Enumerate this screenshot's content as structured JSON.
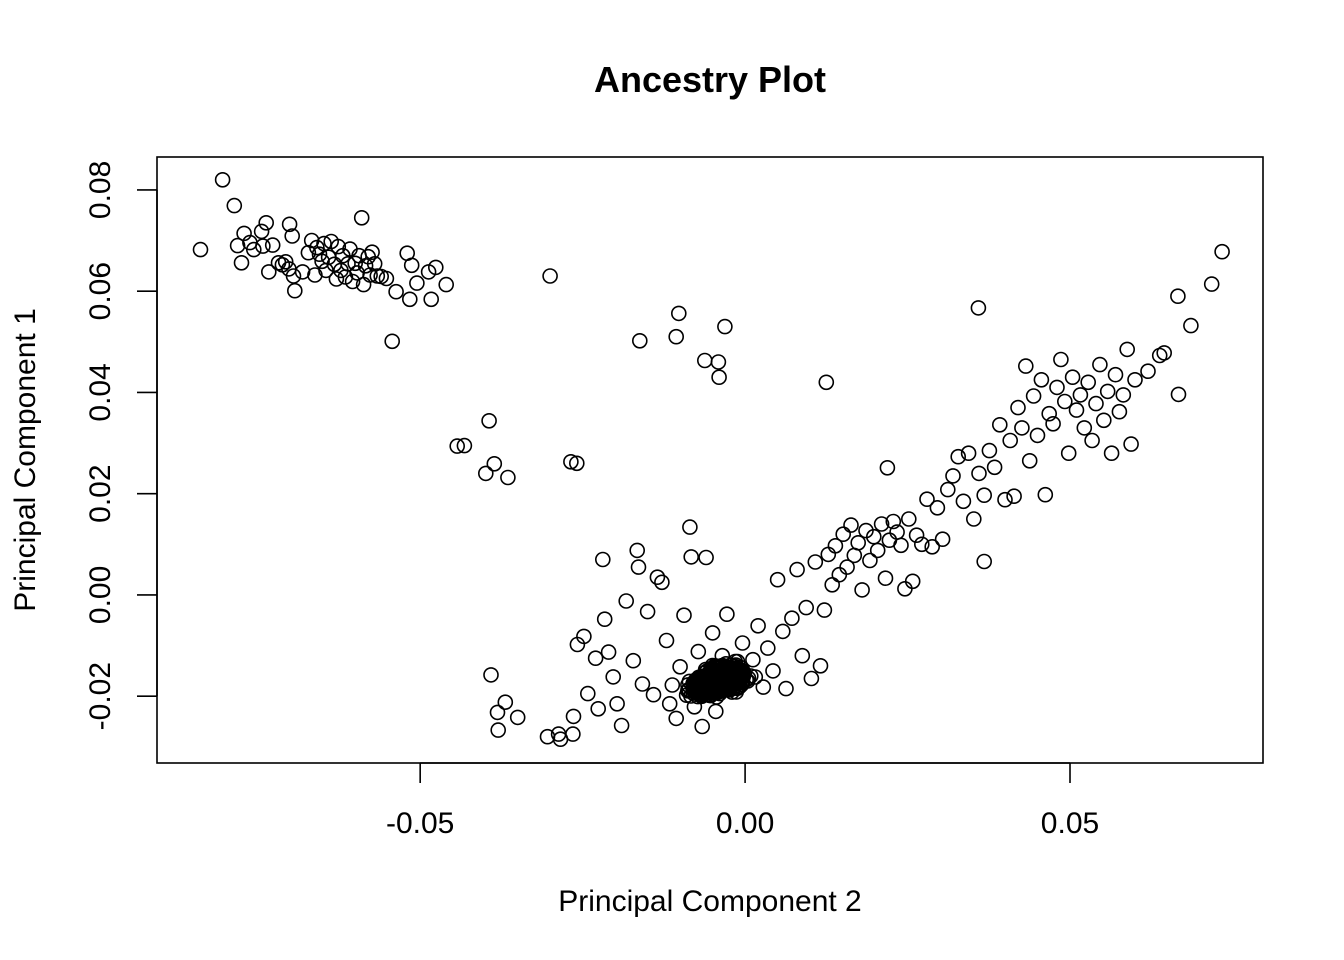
{
  "chart_data": {
    "type": "scatter",
    "title": "Ancestry Plot",
    "xlabel": "Principal Component 2",
    "ylabel": "Principal Component 1",
    "xlim": [
      -0.0905,
      0.0797
    ],
    "ylim": [
      -0.0332,
      0.0865
    ],
    "xticks": [
      -0.05,
      0.0,
      0.05
    ],
    "xtick_labels": [
      "-0.05",
      "0.00",
      "0.05"
    ],
    "yticks": [
      -0.02,
      0.0,
      0.02,
      0.04,
      0.06,
      0.08
    ],
    "ytick_labels": [
      "-0.02",
      "0.00",
      "0.02",
      "0.04",
      "0.06",
      "0.08"
    ],
    "box": true,
    "grid": false,
    "legend": "none",
    "point_style": "open-circle",
    "color": "#000000",
    "series": [
      {
        "points": [
          [
            -0.0838,
            0.0682
          ],
          [
            -0.0804,
            0.082
          ],
          [
            -0.0786,
            0.0769
          ],
          [
            -0.0781,
            0.069
          ],
          [
            -0.0775,
            0.0656
          ],
          [
            -0.0771,
            0.0714
          ],
          [
            -0.0762,
            0.0696
          ],
          [
            -0.0756,
            0.0682
          ],
          [
            -0.0744,
            0.0718
          ],
          [
            -0.0742,
            0.0689
          ],
          [
            -0.0737,
            0.0735
          ],
          [
            -0.0733,
            0.0638
          ],
          [
            -0.0727,
            0.0691
          ],
          [
            -0.0718,
            0.0656
          ],
          [
            -0.0712,
            0.0652
          ],
          [
            -0.0707,
            0.0658
          ],
          [
            -0.0702,
            0.0644
          ],
          [
            -0.0701,
            0.0732
          ],
          [
            -0.0697,
            0.0709
          ],
          [
            -0.0695,
            0.063
          ],
          [
            -0.0693,
            0.0601
          ],
          [
            -0.0681,
            0.0638
          ],
          [
            -0.0672,
            0.0676
          ],
          [
            -0.0667,
            0.07
          ],
          [
            -0.0662,
            0.0632
          ],
          [
            -0.0659,
            0.0686
          ],
          [
            -0.0655,
            0.0673
          ],
          [
            -0.0651,
            0.0659
          ],
          [
            -0.0648,
            0.0694
          ],
          [
            -0.0645,
            0.0641
          ],
          [
            -0.0641,
            0.0667
          ],
          [
            -0.0637,
            0.0698
          ],
          [
            -0.0632,
            0.0653
          ],
          [
            -0.0629,
            0.0624
          ],
          [
            -0.0626,
            0.0688
          ],
          [
            -0.0622,
            0.0641
          ],
          [
            -0.0619,
            0.067
          ],
          [
            -0.0615,
            0.0628
          ],
          [
            -0.0611,
            0.0654
          ],
          [
            -0.0608,
            0.0683
          ],
          [
            -0.0604,
            0.0619
          ],
          [
            -0.06,
            0.0655
          ],
          [
            -0.0597,
            0.0636
          ],
          [
            -0.0594,
            0.067
          ],
          [
            -0.059,
            0.0745
          ],
          [
            -0.0587,
            0.0613
          ],
          [
            -0.0584,
            0.065
          ],
          [
            -0.058,
            0.0668
          ],
          [
            -0.0577,
            0.0632
          ],
          [
            -0.0574,
            0.0677
          ],
          [
            -0.057,
            0.0654
          ],
          [
            -0.0566,
            0.063
          ],
          [
            -0.056,
            0.0629
          ],
          [
            -0.0552,
            0.0625
          ],
          [
            -0.0543,
            0.0501
          ],
          [
            -0.0537,
            0.0599
          ],
          [
            -0.052,
            0.0675
          ],
          [
            -0.0516,
            0.0584
          ],
          [
            -0.0513,
            0.0651
          ],
          [
            -0.0505,
            0.0616
          ],
          [
            -0.0487,
            0.0638
          ],
          [
            -0.0483,
            0.0584
          ],
          [
            -0.0476,
            0.0647
          ],
          [
            -0.046,
            0.0613
          ],
          [
            -0.0443,
            0.0294
          ],
          [
            -0.0432,
            0.0295
          ],
          [
            -0.0399,
            0.024
          ],
          [
            -0.0394,
            0.0344
          ],
          [
            -0.0386,
            0.0259
          ],
          [
            -0.0365,
            0.0232
          ],
          [
            -0.03,
            0.063
          ],
          [
            -0.0268,
            0.0263
          ],
          [
            -0.0259,
            0.026
          ],
          [
            -0.0162,
            0.0502
          ],
          [
            -0.0106,
            0.051
          ],
          [
            -0.0102,
            0.0556
          ],
          [
            -0.0062,
            0.0463
          ],
          [
            -0.0041,
            0.046
          ],
          [
            -0.004,
            0.043
          ],
          [
            -0.0031,
            0.053
          ],
          [
            0.0125,
            0.042
          ],
          [
            0.0359,
            0.0567
          ],
          [
            0.0219,
            0.0251
          ],
          [
            0.0368,
            0.0066
          ],
          [
            -0.0391,
            -0.0158
          ],
          [
            -0.0381,
            -0.0232
          ],
          [
            -0.038,
            -0.0267
          ],
          [
            -0.0369,
            -0.0212
          ],
          [
            -0.035,
            -0.0242
          ],
          [
            -0.0304,
            -0.028
          ],
          [
            -0.0287,
            -0.0275
          ],
          [
            -0.0284,
            -0.0285
          ],
          [
            -0.0265,
            -0.0275
          ],
          [
            -0.0264,
            -0.024
          ],
          [
            -0.0258,
            -0.0098
          ],
          [
            -0.0248,
            -0.0082
          ],
          [
            -0.0242,
            -0.0195
          ],
          [
            -0.023,
            -0.0125
          ],
          [
            -0.0226,
            -0.0225
          ],
          [
            -0.0219,
            0.007
          ],
          [
            -0.0216,
            -0.0048
          ],
          [
            -0.021,
            -0.0113
          ],
          [
            -0.0203,
            -0.0162
          ],
          [
            -0.0197,
            -0.0215
          ],
          [
            -0.019,
            -0.0258
          ],
          [
            -0.0183,
            -0.0012
          ],
          [
            -0.0172,
            -0.013
          ],
          [
            -0.0166,
            0.0088
          ],
          [
            -0.0164,
            0.0055
          ],
          [
            -0.0158,
            -0.0176
          ],
          [
            -0.015,
            -0.0033
          ],
          [
            -0.0141,
            -0.0197
          ],
          [
            -0.0135,
            0.0035
          ],
          [
            -0.0128,
            0.0025
          ],
          [
            -0.0121,
            -0.009
          ],
          [
            -0.0116,
            -0.0215
          ],
          [
            -0.0112,
            -0.0178
          ],
          [
            -0.0106,
            -0.0244
          ],
          [
            -0.01,
            -0.0142
          ],
          [
            -0.0094,
            -0.004
          ],
          [
            -0.009,
            -0.0198
          ],
          [
            -0.0085,
            0.0134
          ],
          [
            -0.0083,
            0.0075
          ],
          [
            -0.0078,
            -0.0221
          ],
          [
            -0.0072,
            -0.0112
          ],
          [
            -0.0066,
            -0.026
          ],
          [
            -0.006,
            0.0074
          ],
          [
            -0.0056,
            -0.018
          ],
          [
            -0.005,
            -0.0075
          ],
          [
            -0.0045,
            -0.023
          ],
          [
            -0.004,
            -0.0152
          ],
          [
            -0.0035,
            -0.012
          ],
          [
            -0.0028,
            -0.0038
          ],
          [
            -0.002,
            -0.0192
          ],
          [
            -0.0012,
            -0.0158
          ],
          [
            -0.0004,
            -0.0095
          ],
          [
            0.0004,
            -0.017
          ],
          [
            0.0012,
            -0.0128
          ],
          [
            0.002,
            -0.0061
          ],
          [
            0.0028,
            -0.0182
          ],
          [
            0.0035,
            -0.0105
          ],
          [
            0.0043,
            -0.015
          ],
          [
            0.005,
            0.003
          ],
          [
            0.0058,
            -0.0072
          ],
          [
            0.0063,
            -0.0185
          ],
          [
            0.0072,
            -0.0046
          ],
          [
            0.008,
            0.005
          ],
          [
            0.0088,
            -0.012
          ],
          [
            0.0094,
            -0.0025
          ],
          [
            0.0102,
            -0.0165
          ],
          [
            0.0108,
            0.0065
          ],
          [
            0.0116,
            -0.014
          ],
          [
            0.0122,
            -0.003
          ],
          [
            0.0128,
            0.008
          ],
          [
            0.0134,
            0.002
          ],
          [
            0.0139,
            0.0097
          ],
          [
            0.0145,
            0.004
          ],
          [
            0.0151,
            0.012
          ],
          [
            0.0157,
            0.0055
          ],
          [
            0.0163,
            0.0138
          ],
          [
            0.0168,
            0.0078
          ],
          [
            0.0174,
            0.0103
          ],
          [
            0.018,
            0.001
          ],
          [
            0.0186,
            0.0127
          ],
          [
            0.0192,
            0.0068
          ],
          [
            0.0198,
            0.0115
          ],
          [
            0.0204,
            0.0088
          ],
          [
            0.021,
            0.014
          ],
          [
            0.0216,
            0.0033
          ],
          [
            0.0222,
            0.0108
          ],
          [
            0.0228,
            0.0145
          ],
          [
            0.0234,
            0.0124
          ],
          [
            0.024,
            0.0098
          ],
          [
            0.0246,
            0.0012
          ],
          [
            0.0252,
            0.015
          ],
          [
            0.0258,
            0.0027
          ],
          [
            0.0264,
            0.0118
          ],
          [
            0.0272,
            0.01
          ],
          [
            0.028,
            0.0189
          ],
          [
            0.0288,
            0.0095
          ],
          [
            0.0296,
            0.0172
          ],
          [
            0.0304,
            0.011
          ],
          [
            0.0312,
            0.0208
          ],
          [
            0.032,
            0.0235
          ],
          [
            0.0328,
            0.0273
          ],
          [
            0.0336,
            0.0185
          ],
          [
            0.0344,
            0.028
          ],
          [
            0.0352,
            0.015
          ],
          [
            0.036,
            0.024
          ],
          [
            0.0368,
            0.0197
          ],
          [
            0.0376,
            0.0285
          ],
          [
            0.0384,
            0.0252
          ],
          [
            0.0392,
            0.0336
          ],
          [
            0.04,
            0.0188
          ],
          [
            0.0408,
            0.0305
          ],
          [
            0.0414,
            0.0195
          ],
          [
            0.042,
            0.037
          ],
          [
            0.0426,
            0.033
          ],
          [
            0.0432,
            0.0452
          ],
          [
            0.0438,
            0.0265
          ],
          [
            0.0444,
            0.0393
          ],
          [
            0.045,
            0.0315
          ],
          [
            0.0456,
            0.0425
          ],
          [
            0.0462,
            0.0198
          ],
          [
            0.0468,
            0.0358
          ],
          [
            0.0474,
            0.0338
          ],
          [
            0.048,
            0.041
          ],
          [
            0.0486,
            0.0465
          ],
          [
            0.0492,
            0.0382
          ],
          [
            0.0498,
            0.028
          ],
          [
            0.0504,
            0.043
          ],
          [
            0.051,
            0.0365
          ],
          [
            0.0516,
            0.0395
          ],
          [
            0.0522,
            0.033
          ],
          [
            0.0528,
            0.042
          ],
          [
            0.0534,
            0.0305
          ],
          [
            0.054,
            0.0378
          ],
          [
            0.0546,
            0.0455
          ],
          [
            0.0552,
            0.0345
          ],
          [
            0.0558,
            0.0402
          ],
          [
            0.0564,
            0.028
          ],
          [
            0.057,
            0.0435
          ],
          [
            0.0576,
            0.0362
          ],
          [
            0.0582,
            0.0395
          ],
          [
            0.0588,
            0.0485
          ],
          [
            0.0594,
            0.0298
          ],
          [
            0.06,
            0.0425
          ],
          [
            0.062,
            0.0442
          ],
          [
            0.0638,
            0.0473
          ],
          [
            0.0645,
            0.0478
          ],
          [
            0.0666,
            0.059
          ],
          [
            0.0667,
            0.0396
          ],
          [
            0.0686,
            0.0532
          ],
          [
            0.0718,
            0.0614
          ],
          [
            0.0734,
            0.0678
          ]
        ]
      }
    ]
  }
}
